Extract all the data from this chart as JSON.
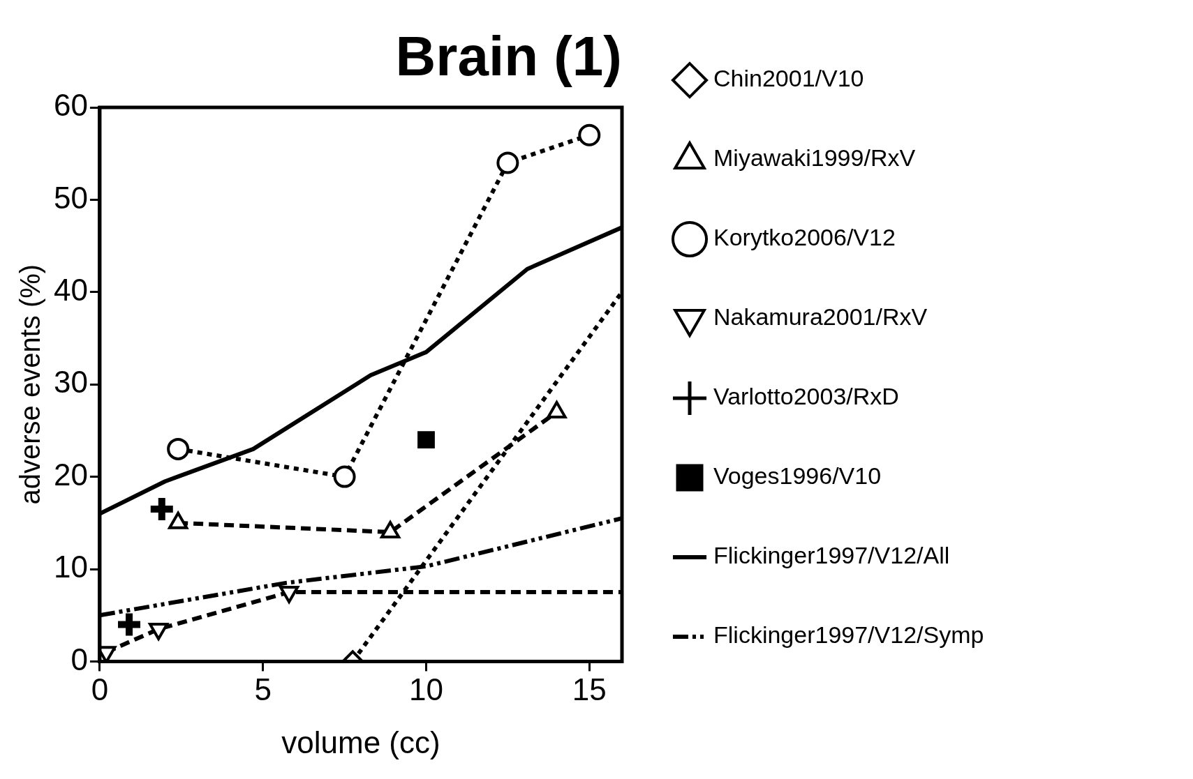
{
  "chart_data": {
    "type": "line",
    "title": "Brain (1)",
    "xlabel": "volume (cc)",
    "ylabel": "adverse events (%)",
    "xlim": [
      0,
      16
    ],
    "xticks": [
      0,
      5,
      10,
      15
    ],
    "ylim": [
      0,
      60
    ],
    "yticks": [
      0,
      10,
      20,
      30,
      40,
      50,
      60
    ],
    "grid": false,
    "legend": "right",
    "series": [
      {
        "name": "Chin2001/V10",
        "color": "#000000",
        "type": "line",
        "marker": "diamond",
        "line_style": "dotted",
        "x": [
          7.75,
          16
        ],
        "values": [
          0,
          40
        ]
      },
      {
        "name": "Miyawaki1999/RxV",
        "color": "#000000",
        "type": "line",
        "marker": "triangle",
        "line_style": "dashed",
        "x": [
          2.4,
          8.9,
          14
        ],
        "values": [
          15,
          14,
          27
        ]
      },
      {
        "name": "Korytko2006/V12",
        "color": "#000000",
        "type": "line",
        "marker": "circle",
        "line_style": "dotted",
        "x": [
          2.4,
          7.5,
          12.5,
          15
        ],
        "values": [
          23,
          20,
          54,
          57
        ]
      },
      {
        "name": "Nakamura2001/RxV",
        "color": "#000000",
        "type": "line",
        "marker": "triangle-down",
        "line_style": "dashed",
        "x": [
          0.2,
          1.8,
          5.8,
          16
        ],
        "values": [
          1,
          3.5,
          7.5,
          7.5
        ]
      },
      {
        "name": "Varlotto2003/RxD",
        "color": "#000000",
        "type": "scatter",
        "marker": "cross",
        "x": [
          0.9,
          1.9
        ],
        "values": [
          4,
          16.5
        ]
      },
      {
        "name": "Voges1996/V10",
        "color": "#000000",
        "type": "scatter",
        "marker": "square",
        "x": [
          10
        ],
        "values": [
          24
        ]
      },
      {
        "name": "Flickinger1997/V12/All",
        "color": "#000000",
        "type": "line",
        "marker": "none",
        "line_style": "solid",
        "x": [
          0,
          2,
          4.7,
          8.3,
          10,
          13.1,
          16
        ],
        "values": [
          16,
          19.5,
          23,
          31,
          33.5,
          42.5,
          47
        ]
      },
      {
        "name": "Flickinger1997/V12/Symp",
        "color": "#000000",
        "type": "line",
        "marker": "none",
        "line_style": "dashdot",
        "x": [
          0,
          5.7,
          10,
          16
        ],
        "values": [
          5,
          8.5,
          10.3,
          15.5
        ]
      }
    ]
  }
}
